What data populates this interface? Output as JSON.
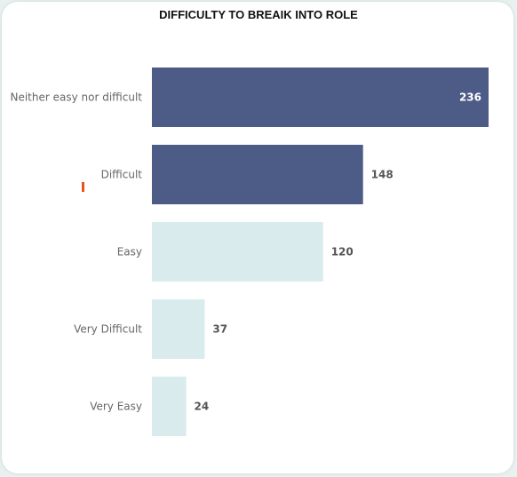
{
  "chart_data": {
    "type": "bar",
    "orientation": "horizontal",
    "title": "DIFFICULTY TO BREAIK INTO ROLE",
    "categories": [
      "Neither easy nor difficult",
      "Difficult",
      "Easy",
      "Very Difficult",
      "Very Easy"
    ],
    "values": [
      236,
      148,
      120,
      37,
      24
    ],
    "bar_colors": [
      "#4d5b87",
      "#4d5b87",
      "#d9ebec",
      "#d9ebec",
      "#d9ebec"
    ],
    "label_colors": {
      "inside": "#ffffff",
      "outside": "#555555"
    },
    "marker_color": "#e8521f",
    "xlim": [
      0,
      236
    ],
    "grid": false,
    "legend": "none"
  }
}
